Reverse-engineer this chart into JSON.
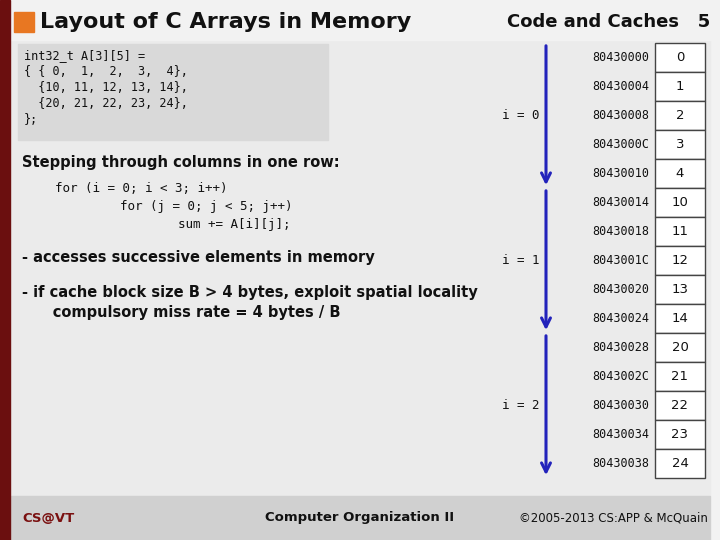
{
  "title": "Layout of C Arrays in Memory",
  "header_right": "Code and Caches   5",
  "slide_bg": "#f2f2f2",
  "title_bg": "#f2f2f2",
  "orange_rect_color": "#e87722",
  "dark_red_bar": "#6b0f0f",
  "code_block_lines": [
    "int32_t A[3][5] =",
    "{ { 0,  1,  2,  3,  4},",
    "  {10, 11, 12, 13, 14},",
    "  {20, 21, 22, 23, 24},",
    "};"
  ],
  "code_bg": "#e0e0e0",
  "stepping_text": "Stepping through columns in one row:",
  "loop_lines": [
    "for (i = 0; i < 3; i++)",
    "    for (j = 0; j < 5; j++)",
    "        sum += A[i][j];"
  ],
  "bullet1": "- accesses successive elements in memory",
  "bullet2": "- if cache block size B > 4 bytes, exploit spatial locality",
  "bullet2b": "      compulsory miss rate = 4 bytes / B",
  "footer_left": "CS@VT",
  "footer_mid": "Computer Organization II",
  "footer_right": "©2005-2013 CS:APP & McQuain",
  "addresses": [
    "80430000",
    "80430004",
    "80430008",
    "8043000C",
    "80430010",
    "80430014",
    "80430018",
    "8043001C",
    "80430020",
    "80430024",
    "80430028",
    "8043002C",
    "80430030",
    "80430034",
    "80430038"
  ],
  "values": [
    "0",
    "1",
    "2",
    "3",
    "4",
    "10",
    "11",
    "12",
    "13",
    "14",
    "20",
    "21",
    "22",
    "23",
    "24"
  ],
  "arrow_color": "#2222bb",
  "i0_label": "i = 0",
  "i1_label": "i = 1",
  "i2_label": "i = 2"
}
